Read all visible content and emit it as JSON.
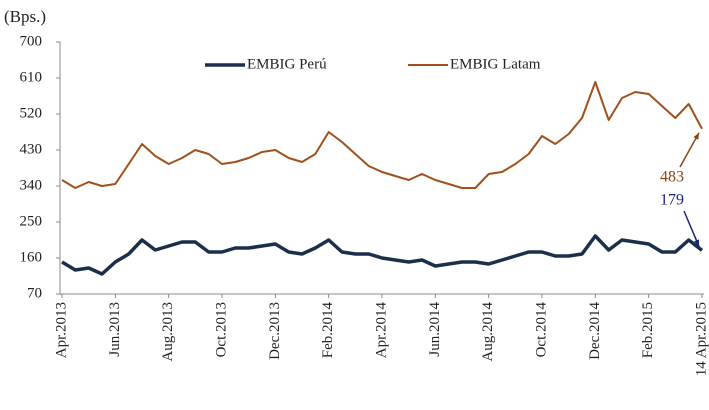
{
  "chart_data": {
    "type": "line",
    "y_label": "(Bps.)",
    "categories": [
      "Apr.2013",
      null,
      null,
      null,
      "Jun.2013",
      null,
      null,
      null,
      "Aug.2013",
      null,
      null,
      null,
      "Oct.2013",
      null,
      null,
      null,
      "Dec.2013",
      null,
      null,
      null,
      "Feb.2014",
      null,
      null,
      null,
      "Apr.2014",
      null,
      null,
      null,
      "Jun.2014",
      null,
      null,
      null,
      "Aug.2014",
      null,
      null,
      null,
      "Oct.2014",
      null,
      null,
      null,
      "Dec.2014",
      null,
      null,
      null,
      "Feb.2015",
      null,
      null,
      null,
      "14 Apr.2015"
    ],
    "series": [
      {
        "name": "EMBIG Perú",
        "color": "#1b2f4a",
        "label_color": "#1a237e",
        "values": [
          150,
          130,
          135,
          120,
          150,
          170,
          205,
          180,
          190,
          200,
          200,
          175,
          175,
          185,
          185,
          190,
          195,
          175,
          170,
          185,
          205,
          175,
          170,
          170,
          160,
          155,
          150,
          155,
          140,
          145,
          150,
          150,
          145,
          155,
          165,
          175,
          175,
          165,
          165,
          170,
          215,
          180,
          205,
          200,
          195,
          175,
          175,
          205,
          179
        ],
        "value_labels": [
          null,
          null,
          null,
          null,
          null,
          null,
          null,
          null,
          null,
          null,
          null,
          null,
          null,
          null,
          null,
          null,
          null,
          null,
          null,
          null,
          null,
          null,
          null,
          null,
          null,
          null,
          null,
          null,
          null,
          null,
          null,
          null,
          null,
          null,
          null,
          null,
          null,
          null,
          null,
          null,
          null,
          null,
          null,
          null,
          null,
          null,
          null,
          null,
          "179"
        ]
      },
      {
        "name": "EMBIG Latam",
        "color": "#a0501a",
        "label_color": "#8b4513",
        "values": [
          355,
          335,
          350,
          340,
          345,
          395,
          445,
          415,
          395,
          410,
          430,
          420,
          395,
          400,
          410,
          425,
          430,
          410,
          400,
          420,
          475,
          450,
          420,
          390,
          375,
          365,
          355,
          370,
          355,
          345,
          335,
          335,
          370,
          375,
          395,
          420,
          465,
          445,
          470,
          510,
          600,
          505,
          560,
          575,
          570,
          540,
          510,
          545,
          483
        ],
        "value_labels": [
          null,
          null,
          null,
          null,
          null,
          null,
          null,
          null,
          null,
          null,
          null,
          null,
          null,
          null,
          null,
          null,
          null,
          null,
          null,
          null,
          null,
          null,
          null,
          null,
          null,
          null,
          null,
          null,
          null,
          null,
          null,
          null,
          null,
          null,
          null,
          null,
          null,
          null,
          null,
          null,
          null,
          null,
          null,
          null,
          null,
          null,
          null,
          null,
          "483"
        ]
      }
    ],
    "ylim": [
      70,
      700
    ],
    "yticks": [
      70,
      160,
      250,
      340,
      430,
      520,
      610,
      700
    ],
    "grid": false,
    "legend": "top"
  }
}
